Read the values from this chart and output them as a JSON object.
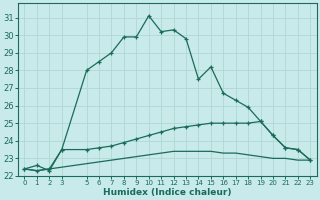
{
  "title": "",
  "xlabel": "Humidex (Indice chaleur)",
  "xlim": [
    -0.5,
    23.5
  ],
  "ylim": [
    22,
    31.8
  ],
  "xticks": [
    0,
    1,
    2,
    3,
    5,
    6,
    7,
    8,
    9,
    10,
    11,
    12,
    13,
    14,
    15,
    16,
    17,
    18,
    19,
    20,
    21,
    22,
    23
  ],
  "yticks": [
    22,
    23,
    24,
    25,
    26,
    27,
    28,
    29,
    30,
    31
  ],
  "bg_color": "#c8eaea",
  "line_color": "#1a6b5a",
  "grid_color": "#b0d8d0",
  "curve1_x": [
    0,
    1,
    2,
    3,
    5,
    6,
    7,
    8,
    9,
    10,
    11,
    12,
    13,
    14,
    15,
    16,
    17,
    18,
    19,
    20,
    21,
    22,
    23
  ],
  "curve1_y": [
    22.4,
    22.6,
    22.3,
    23.5,
    28.0,
    28.5,
    29.0,
    29.9,
    29.9,
    31.1,
    30.2,
    30.3,
    29.8,
    27.5,
    28.2,
    26.7,
    26.3,
    25.9,
    25.1,
    24.3,
    23.6,
    23.5,
    22.9
  ],
  "curve2_x": [
    0,
    1,
    2,
    3,
    5,
    6,
    7,
    8,
    9,
    10,
    11,
    12,
    13,
    14,
    15,
    16,
    17,
    18,
    19,
    20,
    21,
    22,
    23
  ],
  "curve2_y": [
    22.4,
    22.3,
    22.4,
    23.5,
    23.5,
    23.6,
    23.7,
    23.9,
    24.1,
    24.3,
    24.5,
    24.7,
    24.8,
    24.9,
    25.0,
    25.0,
    25.0,
    25.0,
    25.1,
    24.3,
    23.6,
    23.5,
    22.9
  ],
  "curve3_x": [
    0,
    1,
    2,
    3,
    5,
    6,
    7,
    8,
    9,
    10,
    11,
    12,
    13,
    14,
    15,
    16,
    17,
    18,
    19,
    20,
    21,
    22,
    23
  ],
  "curve3_y": [
    22.4,
    22.3,
    22.4,
    22.5,
    22.7,
    22.8,
    22.9,
    23.0,
    23.1,
    23.2,
    23.3,
    23.4,
    23.4,
    23.4,
    23.4,
    23.3,
    23.3,
    23.2,
    23.1,
    23.0,
    23.0,
    22.9,
    22.9
  ]
}
